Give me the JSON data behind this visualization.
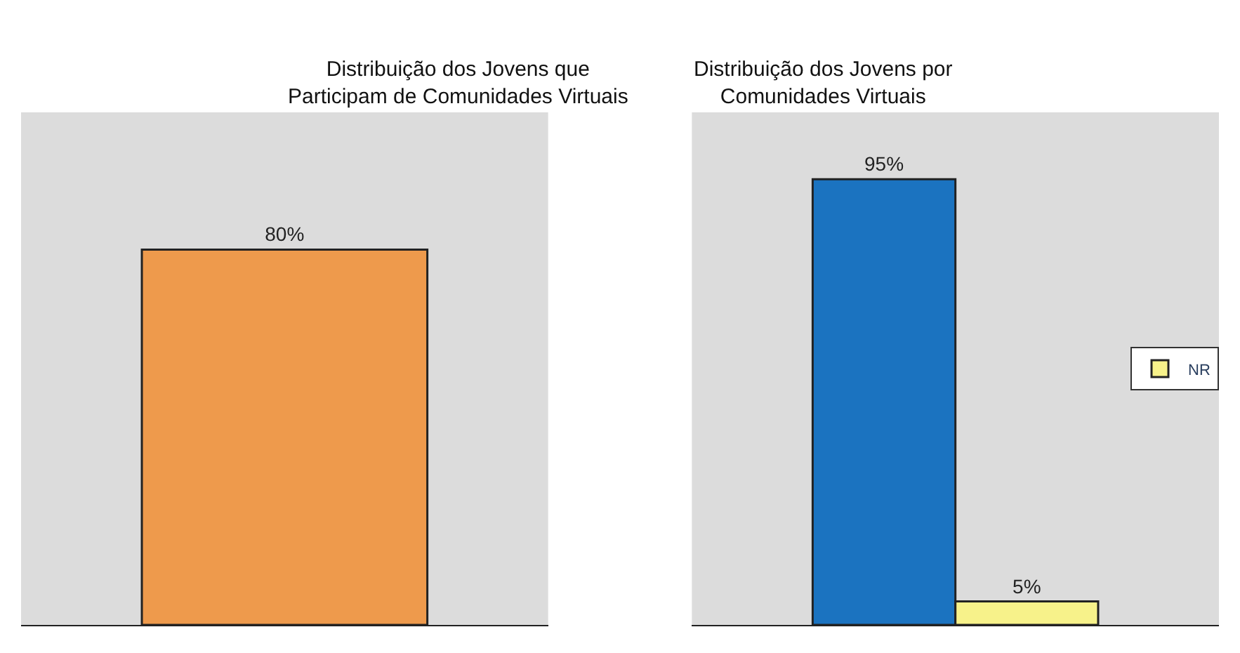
{
  "chart_data": [
    {
      "type": "bar",
      "title": "Distribuição dos Jovens que\nParticipam de Comunidades Virtuais",
      "categories": [
        null
      ],
      "values": [
        80
      ],
      "value_labels": [
        "80%"
      ],
      "color": "#ee9a4c"
    },
    {
      "type": "bar",
      "title": "Distribuição dos Jovens por\nComunidades Virtuais",
      "categories": [
        null
      ],
      "series": [
        {
          "color": "#1b73c0",
          "values": [
            95
          ],
          "value_labels": [
            "95%"
          ]
        },
        {
          "name": "NR",
          "color": "#f7f28a",
          "values": [
            5
          ],
          "value_labels": [
            "5%"
          ]
        }
      ],
      "legend": "right"
    }
  ]
}
